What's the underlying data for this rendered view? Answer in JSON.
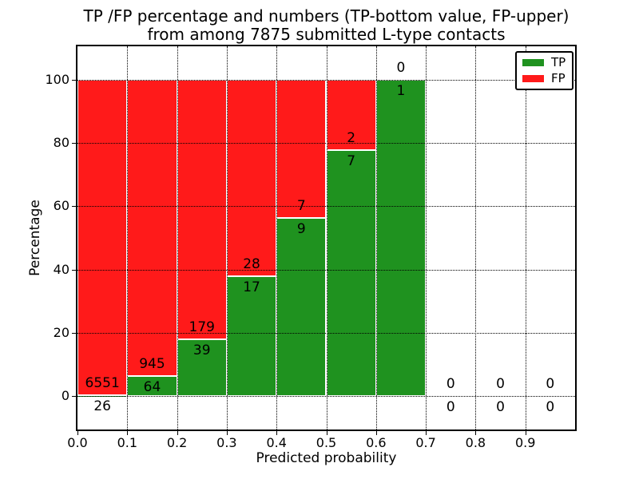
{
  "figure": {
    "title_line1": "TP /FP percentage and numbers (TP-bottom value, FP-upper)",
    "title_line2": "from among 7875 submitted L-type contacts",
    "xlabel": "Predicted probability",
    "ylabel": "Percentage"
  },
  "legend": {
    "items": [
      {
        "label": "TP",
        "color": "#1f921f"
      },
      {
        "label": "FP",
        "color": "#ff1a1a"
      }
    ]
  },
  "chart_data": {
    "type": "bar",
    "subtype": "stacked-percentage-histogram",
    "title": "TP /FP percentage and numbers (TP-bottom value, FP-upper)\nfrom among 7875 submitted L-type contacts",
    "xlabel": "Predicted probability",
    "ylabel": "Percentage",
    "total_submitted": 7875,
    "bin_width": 0.1,
    "bin_starts": [
      0.0,
      0.1,
      0.2,
      0.3,
      0.4,
      0.5,
      0.6,
      0.7,
      0.8,
      0.9
    ],
    "series": [
      {
        "name": "TP",
        "color": "#1f921f",
        "counts": [
          26,
          64,
          39,
          17,
          9,
          7,
          1,
          0,
          0,
          0
        ]
      },
      {
        "name": "FP",
        "color": "#ff1a1a",
        "counts": [
          6551,
          945,
          179,
          28,
          7,
          2,
          0,
          0,
          0,
          0
        ]
      }
    ],
    "tp_percent_by_bin": [
      0.4,
      6.34,
      17.89,
      37.78,
      56.25,
      77.78,
      100.0,
      0,
      0,
      0
    ],
    "xticks": {
      "values": [
        0.0,
        0.1,
        0.2,
        0.3,
        0.4,
        0.5,
        0.6,
        0.7,
        0.8,
        0.9
      ],
      "labels": [
        "0.0",
        "0.1",
        "0.2",
        "0.3",
        "0.4",
        "0.5",
        "0.6",
        "0.7",
        "0.8",
        "0.9"
      ]
    },
    "yticks": {
      "values": [
        0,
        20,
        40,
        60,
        80,
        100
      ],
      "labels": [
        "0",
        "20",
        "40",
        "60",
        "80",
        "100"
      ]
    },
    "xlim": [
      0.0,
      1.0
    ],
    "ylim": [
      -10.5,
      110.5
    ],
    "grid": true,
    "grid_style": "dotted",
    "legend_position": "upper right",
    "bar_edge_color": "#ffffff",
    "label_color": "#000000"
  }
}
